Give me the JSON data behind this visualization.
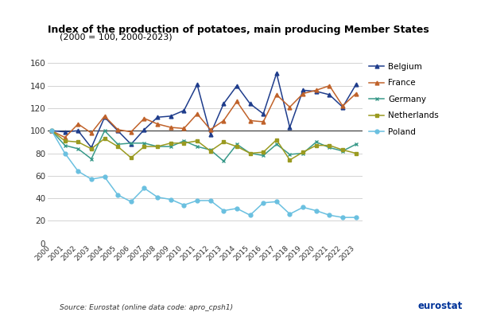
{
  "years": [
    2000,
    2001,
    2002,
    2003,
    2004,
    2005,
    2006,
    2007,
    2008,
    2009,
    2010,
    2011,
    2012,
    2013,
    2014,
    2015,
    2016,
    2017,
    2018,
    2019,
    2020,
    2021,
    2022,
    2023
  ],
  "Belgium": [
    100,
    99,
    100,
    85,
    112,
    100,
    88,
    101,
    112,
    113,
    118,
    141,
    97,
    124,
    140,
    124,
    115,
    151,
    103,
    136,
    135,
    132,
    121,
    141
  ],
  "France": [
    100,
    94,
    106,
    98,
    113,
    101,
    99,
    111,
    106,
    103,
    102,
    115,
    101,
    109,
    126,
    109,
    108,
    132,
    121,
    133,
    136,
    140,
    122,
    133
  ],
  "Germany": [
    100,
    87,
    84,
    75,
    100,
    88,
    89,
    89,
    86,
    86,
    91,
    86,
    83,
    73,
    88,
    80,
    78,
    88,
    79,
    80,
    90,
    85,
    82,
    88
  ],
  "Netherlands": [
    100,
    91,
    90,
    84,
    93,
    86,
    76,
    86,
    86,
    89,
    89,
    91,
    82,
    90,
    86,
    80,
    81,
    92,
    74,
    81,
    87,
    87,
    83,
    80
  ],
  "Poland": [
    100,
    80,
    64,
    57,
    59,
    43,
    37,
    49,
    41,
    39,
    34,
    38,
    38,
    29,
    31,
    25,
    36,
    37,
    26,
    32,
    29,
    25,
    23,
    23
  ],
  "colors": {
    "Belgium": "#1f3d8c",
    "France": "#c0622a",
    "Germany": "#3a9a8a",
    "Netherlands": "#9a9a20",
    "Poland": "#6ac0e0"
  },
  "markers": {
    "Belgium": "^",
    "France": "^",
    "Germany": "x",
    "Netherlands": "s",
    "Poland": "o"
  },
  "title": "Index of the production of potatoes, main producing Member States",
  "subtitle": "(2000 = 100, 2000-2023)",
  "source": "Source: Eurostat (online data code: apro_cpsh1)",
  "ylim": [
    0,
    160
  ],
  "yticks": [
    0,
    20,
    40,
    60,
    80,
    100,
    120,
    140,
    160
  ]
}
